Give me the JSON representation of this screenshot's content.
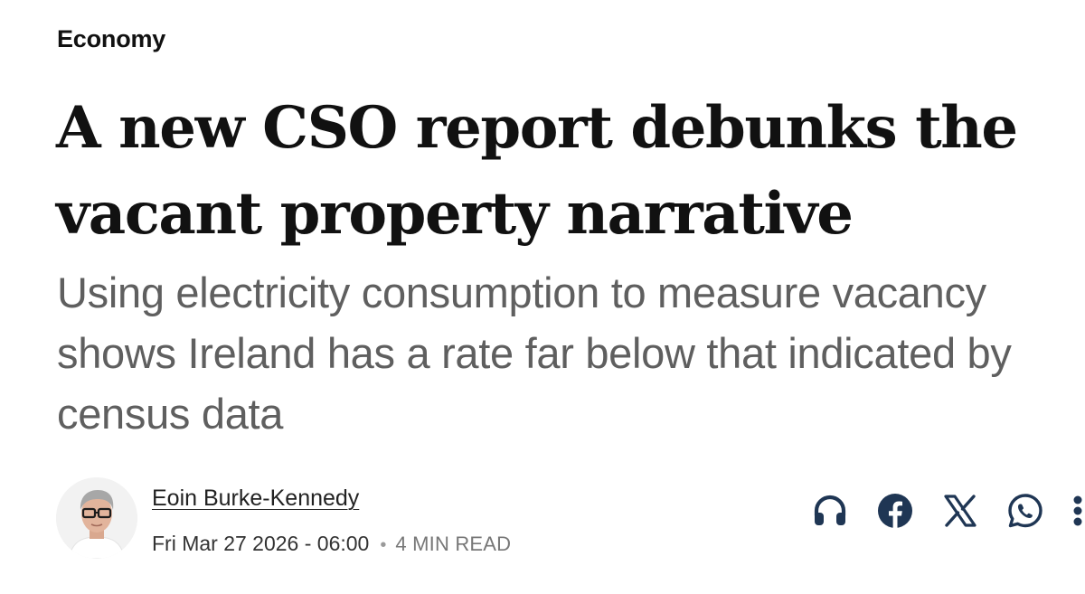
{
  "article": {
    "section": "Economy",
    "headline": "A new CSO report debunks the vacant property narrative",
    "standfirst": "Using electricity consumption to measure vacancy shows Ireland has a rate far below that indicated by census data",
    "author": "Eoin Burke-Kennedy",
    "date": "Fri Mar 27 2026 - 06:00",
    "separator": "•",
    "read_time": "4 MIN READ"
  },
  "share_icons": [
    "headphones-icon",
    "facebook-icon",
    "x-icon",
    "whatsapp-icon",
    "more-icon"
  ],
  "colors": {
    "headline": "#111111",
    "standfirst": "#5f5f5f",
    "icons": "#1f3654",
    "meta_muted": "#777777"
  }
}
